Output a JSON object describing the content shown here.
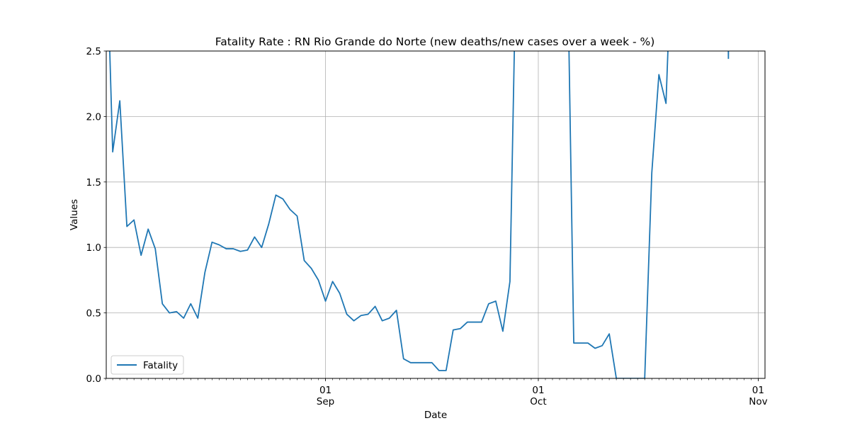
{
  "chart_data": {
    "type": "line",
    "title": "Fatality Rate : RN Rio Grande do Norte (new deaths/new cases over a week - %)",
    "xlabel": "Date",
    "ylabel": "Values",
    "xlim": [
      "2020-08-01",
      "2020-11-01"
    ],
    "ylim": [
      0,
      2.5
    ],
    "yticks": [
      0.0,
      0.5,
      1.0,
      1.5,
      2.0,
      2.5
    ],
    "ytick_labels": [
      "0.0",
      "0.5",
      "1.0",
      "1.5",
      "2.0",
      "2.5"
    ],
    "xticks": [
      {
        "date": "2020-09-01",
        "label_day": "01",
        "label_month": "Sep"
      },
      {
        "date": "2020-10-01",
        "label_day": "01",
        "label_month": "Oct"
      },
      {
        "date": "2020-11-01",
        "label_day": "01",
        "label_month": "Nov"
      }
    ],
    "grid": true,
    "legend": {
      "position": "lower-left",
      "entries": [
        "Fatality"
      ]
    },
    "series": [
      {
        "name": "Fatality",
        "color": "#1f77b4",
        "x": [
          "2020-08-02",
          "2020-08-03",
          "2020-08-04",
          "2020-08-05",
          "2020-08-06",
          "2020-08-07",
          "2020-08-08",
          "2020-08-09",
          "2020-08-10",
          "2020-08-11",
          "2020-08-12",
          "2020-08-13",
          "2020-08-14",
          "2020-08-15",
          "2020-08-16",
          "2020-08-17",
          "2020-08-18",
          "2020-08-19",
          "2020-08-20",
          "2020-08-21",
          "2020-08-22",
          "2020-08-23",
          "2020-08-24",
          "2020-08-25",
          "2020-08-26",
          "2020-08-27",
          "2020-08-28",
          "2020-08-29",
          "2020-08-30",
          "2020-08-31",
          "2020-09-01",
          "2020-09-02",
          "2020-09-03",
          "2020-09-04",
          "2020-09-05",
          "2020-09-06",
          "2020-09-07",
          "2020-09-08",
          "2020-09-09",
          "2020-09-10",
          "2020-09-11",
          "2020-09-12",
          "2020-09-13",
          "2020-09-14",
          "2020-09-15",
          "2020-09-16",
          "2020-09-17",
          "2020-09-18",
          "2020-09-19",
          "2020-09-20",
          "2020-09-21",
          "2020-09-22",
          "2020-09-23",
          "2020-09-24",
          "2020-09-25",
          "2020-09-26",
          "2020-09-27",
          "2020-09-28",
          "2020-09-29",
          "2020-09-30",
          "2020-10-01",
          "2020-10-02",
          "2020-10-03",
          "2020-10-04",
          "2020-10-05",
          "2020-10-06",
          "2020-10-07",
          "2020-10-08",
          "2020-10-09",
          "2020-10-10",
          "2020-10-11",
          "2020-10-12",
          "2020-10-13",
          "2020-10-14",
          "2020-10-15",
          "2020-10-16",
          "2020-10-17",
          "2020-10-18",
          "2020-10-19",
          "2020-10-20",
          "2020-10-21",
          "2020-10-22",
          "2020-10-23",
          "2020-10-24",
          "2020-10-25",
          "2020-10-26",
          "2020-10-27"
        ],
        "y": [
          1.73,
          2.12,
          1.16,
          1.21,
          0.94,
          1.14,
          0.99,
          0.57,
          0.5,
          0.51,
          0.46,
          0.57,
          0.46,
          0.81,
          1.04,
          1.02,
          0.99,
          0.99,
          0.97,
          0.98,
          1.08,
          1.0,
          1.18,
          1.4,
          1.37,
          1.29,
          1.24,
          0.9,
          0.84,
          0.75,
          0.59,
          0.74,
          0.65,
          0.49,
          0.44,
          0.48,
          0.49,
          0.55,
          0.44,
          0.46,
          0.52,
          0.15,
          0.12,
          0.12,
          0.12,
          0.12,
          0.06,
          0.06,
          0.37,
          0.38,
          0.43,
          0.43,
          0.43,
          0.57,
          0.59,
          0.36,
          0.74,
          null,
          null,
          null,
          null,
          null,
          null,
          null,
          null,
          0.27,
          0.27,
          0.27,
          0.23,
          0.25,
          0.34,
          0.0,
          0.0,
          0.0,
          0.0,
          0.0,
          1.57,
          2.32,
          2.1,
          null,
          null,
          null,
          null,
          null,
          null,
          null,
          null
        ]
      }
    ]
  }
}
